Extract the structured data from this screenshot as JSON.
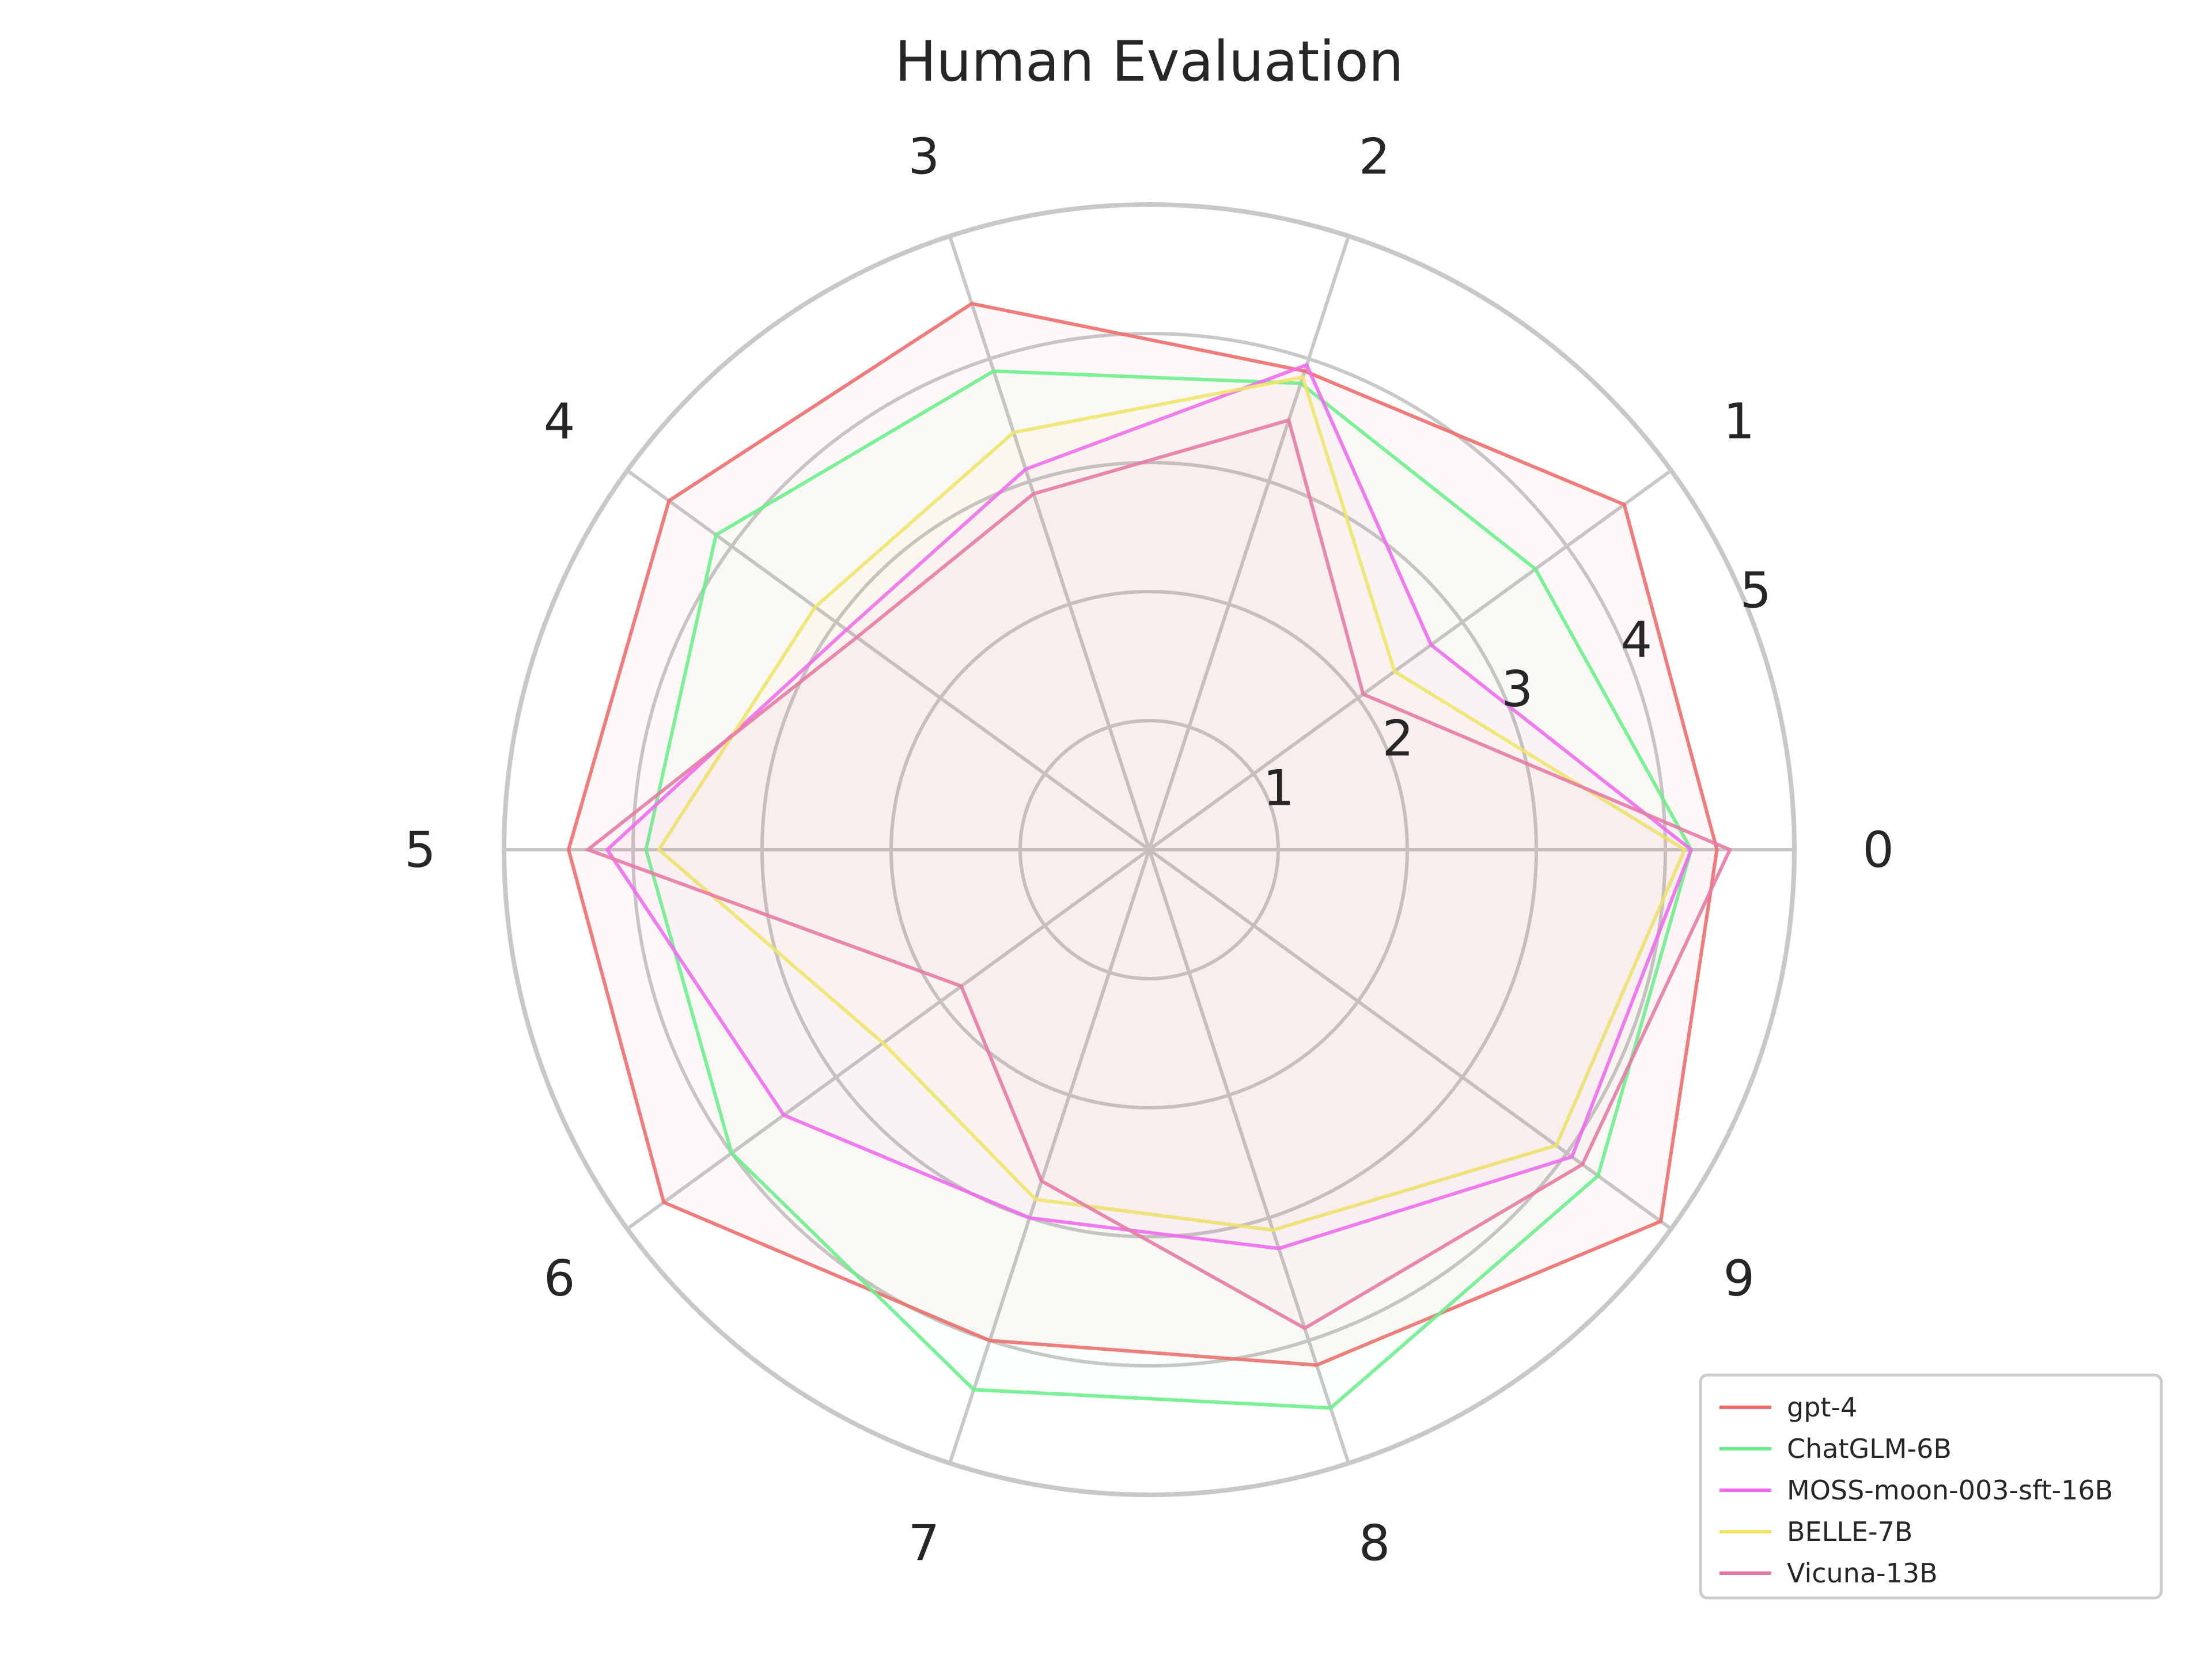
{
  "chart_data": {
    "type": "radar",
    "title": "Human Evaluation",
    "categories": [
      "0",
      "1",
      "2",
      "3",
      "4",
      "5",
      "6",
      "7",
      "8",
      "9"
    ],
    "radial_ticks": [
      "1",
      "2",
      "3",
      "4",
      "5"
    ],
    "rlim": [
      0,
      5
    ],
    "grid": true,
    "legend_placement": "bottom-right",
    "series": [
      {
        "name": "gpt-4",
        "color": "#f06d6d",
        "fill_opacity": 0.05,
        "values": [
          4.4,
          4.55,
          3.9,
          4.45,
          4.6,
          4.5,
          4.65,
          4.0,
          4.2,
          4.9
        ]
      },
      {
        "name": "ChatGLM-6B",
        "color": "#6cf08c",
        "fill_opacity": 0.03,
        "values": [
          4.2,
          3.7,
          3.8,
          3.9,
          4.15,
          3.9,
          4.0,
          4.4,
          4.55,
          4.3
        ]
      },
      {
        "name": "MOSS-moon-003-sft-16B",
        "color": "#f06cf0",
        "fill_opacity": 0.03,
        "values": [
          4.2,
          2.7,
          3.95,
          3.1,
          2.9,
          4.2,
          3.5,
          3.0,
          3.25,
          4.05
        ]
      },
      {
        "name": "BELLE-7B",
        "color": "#f0e46c",
        "fill_opacity": 0.03,
        "values": [
          4.15,
          2.35,
          3.85,
          3.4,
          3.2,
          3.8,
          2.55,
          2.85,
          3.1,
          3.9
        ]
      },
      {
        "name": "Vicuna-13B",
        "color": "#e67aa6",
        "fill_opacity": 0.03,
        "values": [
          4.5,
          2.05,
          3.5,
          2.9,
          2.8,
          4.35,
          1.8,
          2.7,
          3.9,
          4.15
        ]
      }
    ]
  }
}
